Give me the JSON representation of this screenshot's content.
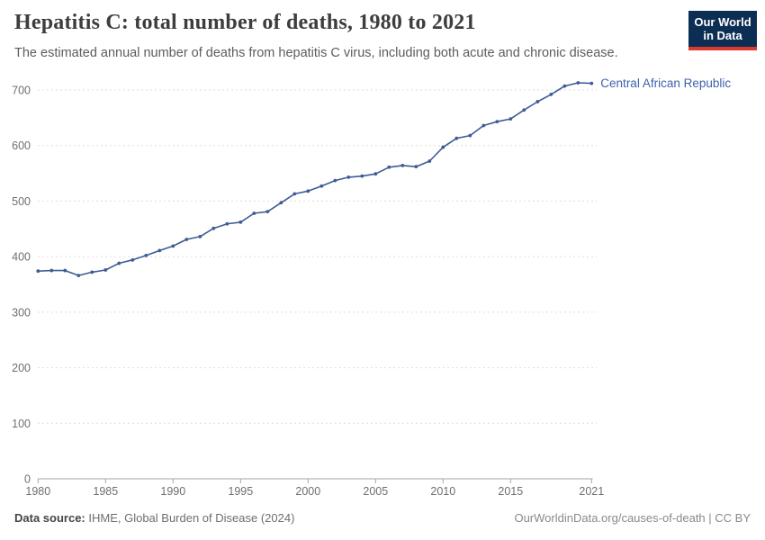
{
  "header": {
    "title": "Hepatitis C: total number of deaths, 1980 to 2021",
    "subtitle": "The estimated annual number of deaths from hepatitis C virus, including both acute and chronic disease.",
    "logo": {
      "line1": "Our World",
      "line2": "in Data"
    }
  },
  "chart_data": {
    "type": "line",
    "title": "Hepatitis C: total number of deaths, 1980 to 2021",
    "xlabel": "",
    "ylabel": "",
    "xlim": [
      1980,
      2021
    ],
    "ylim": [
      0,
      700
    ],
    "x_ticks": [
      1980,
      1985,
      1990,
      1995,
      2000,
      2005,
      2010,
      2015,
      2021
    ],
    "y_ticks": [
      0,
      100,
      200,
      300,
      400,
      500,
      600,
      700
    ],
    "grid": "horizontal-dashed",
    "legend_position": "end-of-line-label",
    "x": [
      1980,
      1981,
      1982,
      1983,
      1984,
      1985,
      1986,
      1987,
      1988,
      1989,
      1990,
      1991,
      1992,
      1993,
      1994,
      1995,
      1996,
      1997,
      1998,
      1999,
      2000,
      2001,
      2002,
      2003,
      2004,
      2005,
      2006,
      2007,
      2008,
      2009,
      2010,
      2011,
      2012,
      2013,
      2014,
      2015,
      2016,
      2017,
      2018,
      2019,
      2020,
      2021
    ],
    "series": [
      {
        "name": "Central African Republic",
        "values": [
          374,
          375,
          375,
          366,
          372,
          376,
          388,
          394,
          402,
          411,
          419,
          431,
          436,
          451,
          459,
          462,
          478,
          481,
          497,
          513,
          518,
          527,
          537,
          543,
          545,
          549,
          561,
          564,
          562,
          572,
          597,
          613,
          618,
          636,
          643,
          648,
          664,
          679,
          692,
          707,
          713,
          712
        ]
      }
    ]
  },
  "colors": {
    "line": "#3d5c94",
    "entity_label": "#3d63aa",
    "grid": "#dddddd",
    "axis": "#a5a5a5",
    "tick_text": "#6e6e6e",
    "logo_bg": "#0d2e54",
    "logo_bar": "#dc3a2e"
  },
  "footer": {
    "source_label": "Data source:",
    "source_text": " IHME, Global Burden of Disease (2024)",
    "right_text": "OurWorldinData.org/causes-of-death | CC BY"
  }
}
